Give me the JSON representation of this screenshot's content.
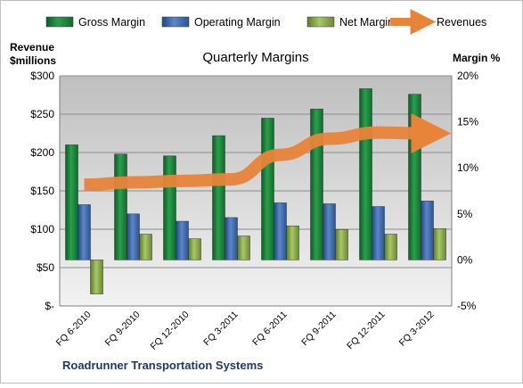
{
  "chart_data": {
    "type": "bar",
    "title": "Quarterly Margins",
    "footer": "Roadrunner Transportation Systems",
    "ylabel_left": [
      "Revenue",
      "$millions"
    ],
    "ylabel_right": "Margin %",
    "categories": [
      "FQ 6-2010",
      "FQ 9-2010",
      "FQ 12-2010",
      "FQ 3-2011",
      "FQ 6-2011",
      "FQ 9-2011",
      "FQ 12-2011",
      "FQ 3-2012"
    ],
    "left_axis": {
      "ylim": [
        0,
        300
      ],
      "ticks": [
        0,
        50,
        100,
        150,
        200,
        250,
        300
      ],
      "tick_labels": [
        "$-",
        "$50",
        "$100",
        "$150",
        "$200",
        "$250",
        "$300"
      ]
    },
    "right_axis": {
      "ylim": [
        -5,
        20
      ],
      "ticks": [
        -5,
        0,
        5,
        10,
        15,
        20
      ],
      "tick_labels": [
        "-5%",
        "0%",
        "5%",
        "10%",
        "15%",
        "20%"
      ]
    },
    "grid": true,
    "legend_position": "top",
    "series": [
      {
        "name": "Gross Margin",
        "kind": "bar",
        "axis": "right",
        "color": "#1f8a3d",
        "values": [
          12.5,
          11.5,
          11.3,
          13.5,
          15.4,
          16.4,
          18.6,
          18.0
        ]
      },
      {
        "name": "Operating Margin",
        "kind": "bar",
        "axis": "right",
        "color": "#3e6fb8",
        "values": [
          6.0,
          5.0,
          4.2,
          4.6,
          6.2,
          6.1,
          5.8,
          6.4
        ]
      },
      {
        "name": "Net Margin",
        "kind": "bar",
        "axis": "right",
        "color": "#8fb04e",
        "values": [
          -3.7,
          2.8,
          2.3,
          2.6,
          3.7,
          3.3,
          2.8,
          3.4
        ]
      },
      {
        "name": "Revenues",
        "kind": "line",
        "axis": "left",
        "color": "#e8843a",
        "values": [
          158,
          161,
          163,
          165,
          197,
          218,
          226,
          225
        ]
      }
    ]
  }
}
